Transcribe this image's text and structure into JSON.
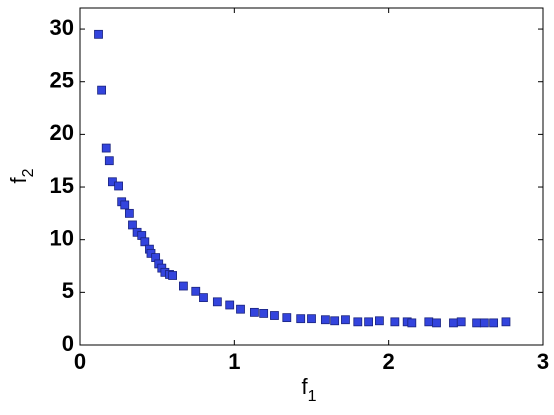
{
  "chart_data": {
    "type": "scatter",
    "xlabel": "f",
    "xlabel_sub": "1",
    "ylabel": "f",
    "ylabel_sub": "2",
    "xlim": [
      0,
      3
    ],
    "ylim": [
      0,
      32
    ],
    "xticks": [
      0,
      1,
      2,
      3
    ],
    "yticks": [
      0,
      5,
      10,
      15,
      20,
      25,
      30
    ],
    "grid": false,
    "series": [
      {
        "color": "#3344dd",
        "x": [
          0.12,
          0.14,
          0.17,
          0.19,
          0.21,
          0.25,
          0.27,
          0.29,
          0.32,
          0.34,
          0.37,
          0.4,
          0.42,
          0.45,
          0.46,
          0.49,
          0.51,
          0.53,
          0.55,
          0.58,
          0.6,
          0.67,
          0.75,
          0.8,
          0.89,
          0.97,
          1.04,
          1.13,
          1.19,
          1.26,
          1.34,
          1.43,
          1.5,
          1.59,
          1.65,
          1.72,
          1.8,
          1.87,
          1.94,
          2.04,
          2.12,
          2.15,
          2.26,
          2.31,
          2.42,
          2.47,
          2.57,
          2.62,
          2.68,
          2.76
        ],
        "values": [
          29.5,
          24.2,
          18.7,
          17.5,
          15.5,
          15.1,
          13.6,
          13.3,
          12.5,
          11.4,
          10.7,
          10.4,
          9.8,
          9.1,
          8.7,
          8.3,
          7.7,
          7.3,
          6.9,
          6.7,
          6.6,
          5.6,
          5.1,
          4.5,
          4.1,
          3.8,
          3.4,
          3.1,
          3.0,
          2.8,
          2.6,
          2.5,
          2.5,
          2.4,
          2.3,
          2.4,
          2.2,
          2.2,
          2.3,
          2.2,
          2.2,
          2.1,
          2.2,
          2.1,
          2.1,
          2.2,
          2.1,
          2.1,
          2.1,
          2.2
        ]
      }
    ]
  }
}
